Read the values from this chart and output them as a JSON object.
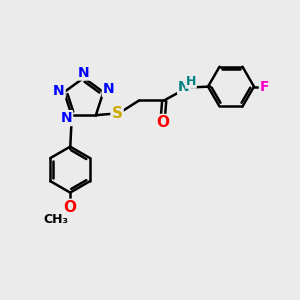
{
  "bg_color": "#ebebeb",
  "bond_color": "#000000",
  "bond_width": 1.8,
  "atom_colors": {
    "N": "#0000ff",
    "O": "#ff0000",
    "S": "#ccaa00",
    "F": "#ff00cc",
    "H": "#008080",
    "C": "#000000"
  },
  "font_size": 10,
  "fig_size": [
    3.0,
    3.0
  ],
  "dpi": 100
}
